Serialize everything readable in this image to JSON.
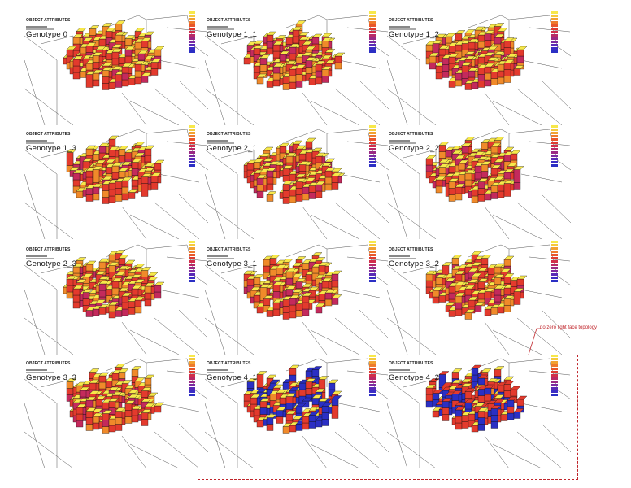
{
  "header_label": "OBJECT ATTRIBUTES",
  "tiles": [
    {
      "name": "Genotype 0"
    },
    {
      "name": "Genotype 1_1"
    },
    {
      "name": "Genotype 1_2"
    },
    {
      "name": "Genotype 1_3"
    },
    {
      "name": "Genotype 2_1"
    },
    {
      "name": "Genotype 2_2"
    },
    {
      "name": "Genotype 2_3"
    },
    {
      "name": "Genotype 3_1"
    },
    {
      "name": "Genotype 3_2"
    },
    {
      "name": "Genotype 3_3"
    },
    {
      "name": "Genotype 4_1"
    },
    {
      "name": "Genotype 4_2"
    }
  ],
  "annotation": "no zero light face topology",
  "colors": {
    "yellow": "#f7e84a",
    "orange": "#f08a2a",
    "red": "#e33a2d",
    "magenta": "#c42a5c",
    "purple": "#6b2aa8",
    "blue": "#2b2fc4",
    "annotation_red": "#c0242a",
    "grid": "#111111"
  },
  "legend_scale": [
    "#f7e84a",
    "#f5c93c",
    "#f2a232",
    "#ee7a2c",
    "#e8562a",
    "#df3a30",
    "#d12e4a",
    "#b82a66",
    "#9a2a84",
    "#7b2aa0",
    "#5a2bb6",
    "#3c2dc4",
    "#2b2fc4"
  ]
}
